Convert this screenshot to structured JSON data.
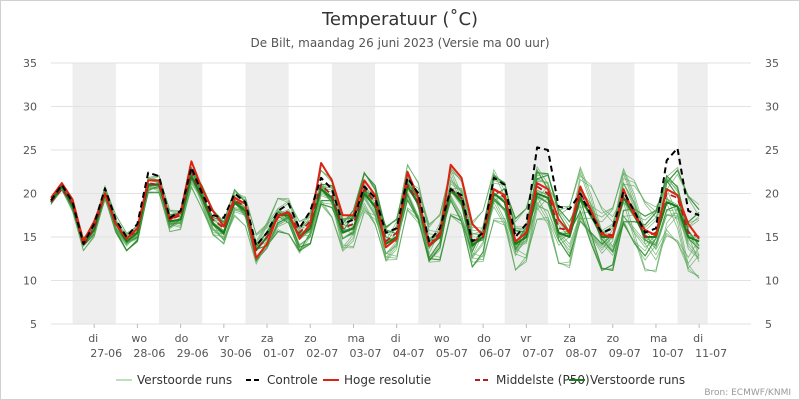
{
  "chart_data": {
    "type": "line",
    "title": "Temperatuur (˚C)",
    "subtitle": "De Bilt, maandag 26 juni 2023 (Versie ma 00 uur)",
    "source": "Bron: ECMWF/KNMI",
    "ylim": [
      5,
      35
    ],
    "yticks": [
      5,
      10,
      15,
      20,
      25,
      30,
      35
    ],
    "xlim": [
      0,
      16.2
    ],
    "x_ticks": [
      {
        "x": 1,
        "day": "di",
        "date": "27-06"
      },
      {
        "x": 2,
        "day": "wo",
        "date": "28-06"
      },
      {
        "x": 3,
        "day": "do",
        "date": "29-06"
      },
      {
        "x": 4,
        "day": "vr",
        "date": "30-06"
      },
      {
        "x": 5,
        "day": "za",
        "date": "01-07"
      },
      {
        "x": 6,
        "day": "zo",
        "date": "02-07"
      },
      {
        "x": 7,
        "day": "ma",
        "date": "03-07"
      },
      {
        "x": 8,
        "day": "di",
        "date": "04-07"
      },
      {
        "x": 9,
        "day": "wo",
        "date": "05-07"
      },
      {
        "x": 10,
        "day": "do",
        "date": "06-07"
      },
      {
        "x": 11,
        "day": "vr",
        "date": "07-07"
      },
      {
        "x": 12,
        "day": "za",
        "date": "08-07"
      },
      {
        "x": 13,
        "day": "zo",
        "date": "09-07"
      },
      {
        "x": 14,
        "day": "ma",
        "date": "10-07"
      },
      {
        "x": 15,
        "day": "di",
        "date": "11-07"
      }
    ],
    "shaded_bands": [
      [
        0.5,
        1.5
      ],
      [
        2.5,
        3.5
      ],
      [
        4.5,
        5.5
      ],
      [
        6.5,
        7.5
      ],
      [
        8.5,
        9.5
      ],
      [
        10.5,
        11.5
      ],
      [
        12.5,
        13.5
      ],
      [
        14.5,
        15.2
      ]
    ],
    "colors": {
      "ensemble": "#5aa85a",
      "control": "#000000",
      "high_res": "#e02010",
      "median": "#b02020",
      "shade": "#eeeeee"
    },
    "x": [
      0,
      0.25,
      0.5,
      0.75,
      1,
      1.25,
      1.5,
      1.75,
      2,
      2.25,
      2.5,
      2.75,
      3,
      3.25,
      3.5,
      3.75,
      4,
      4.25,
      4.5,
      4.75,
      5,
      5.25,
      5.5,
      5.75,
      6,
      6.25,
      6.5,
      6.75,
      7,
      7.25,
      7.5,
      7.75,
      8,
      8.25,
      8.5,
      8.75,
      9,
      9.25,
      9.5,
      9.75,
      10,
      10.25,
      10.5,
      10.75,
      11,
      11.25,
      11.5,
      11.75,
      12,
      12.25,
      12.5,
      12.75,
      13,
      13.25,
      13.5,
      13.75,
      14,
      14.25,
      14.5,
      14.75,
      15
    ],
    "series": [
      {
        "name": "Controle",
        "style": "control",
        "values": [
          19.2,
          21.0,
          19.0,
          14.2,
          16.5,
          20.6,
          17.0,
          15.0,
          16.5,
          22.4,
          22.0,
          17.2,
          18.0,
          23.0,
          20.0,
          17.5,
          17.2,
          20.0,
          19.0,
          14.0,
          15.5,
          18.0,
          18.8,
          16.0,
          18.0,
          21.8,
          20.5,
          16.5,
          17.0,
          20.8,
          19.5,
          15.5,
          16.0,
          21.8,
          20.0,
          14.5,
          16.0,
          20.5,
          19.8,
          14.5,
          15.5,
          21.8,
          21.0,
          15.0,
          16.5,
          25.3,
          25.0,
          18.5,
          18.2,
          20.0,
          17.5,
          15.5,
          16.0,
          20.2,
          18.0,
          15.5,
          16.0,
          23.8,
          25.2,
          18.0,
          17.5
        ]
      },
      {
        "name": "Hoge resolutie",
        "style": "high_res",
        "values": [
          19.5,
          21.2,
          19.3,
          14.5,
          16.8,
          20.0,
          16.5,
          14.8,
          16.0,
          21.5,
          21.5,
          17.0,
          17.8,
          23.7,
          20.5,
          18.0,
          16.2,
          19.5,
          18.8,
          12.6,
          14.2,
          17.5,
          17.8,
          14.8,
          16.5,
          23.5,
          21.5,
          17.5,
          17.5,
          21.5,
          19.8,
          13.8,
          14.8,
          22.5,
          19.5,
          14.0,
          15.2,
          23.3,
          21.8,
          16.5,
          15.2,
          20.5,
          19.8,
          14.5,
          15.5,
          21.2,
          20.5,
          17.0,
          15.5,
          20.8,
          18.0,
          15.3,
          15.0,
          20.5,
          17.5,
          15.8,
          15.2,
          20.5,
          19.8,
          16.5,
          14.8
        ]
      },
      {
        "name": "Middelste (P50)",
        "style": "median",
        "values": [
          19.0,
          20.5,
          18.8,
          14.0,
          16.0,
          20.0,
          16.5,
          14.8,
          15.8,
          21.2,
          21.0,
          17.0,
          17.5,
          22.5,
          19.8,
          17.0,
          16.0,
          19.2,
          18.5,
          13.5,
          15.0,
          17.2,
          18.0,
          15.5,
          16.8,
          21.0,
          19.8,
          16.0,
          16.5,
          20.5,
          19.0,
          14.5,
          15.5,
          21.0,
          19.0,
          14.0,
          15.5,
          20.5,
          19.5,
          14.5,
          15.0,
          20.5,
          19.5,
          14.5,
          15.5,
          20.8,
          20.0,
          16.0,
          15.8,
          20.0,
          18.0,
          15.5,
          15.2,
          19.8,
          18.0,
          15.0,
          15.5,
          20.0,
          19.5,
          15.5,
          15.0
        ]
      },
      {
        "name": "Verstoorde runs",
        "style": "ensemble_mean",
        "values": [
          19.0,
          20.8,
          18.5,
          14.2,
          15.8,
          20.0,
          16.5,
          14.5,
          15.5,
          21.0,
          21.0,
          16.8,
          17.0,
          22.0,
          19.5,
          16.5,
          15.5,
          19.0,
          18.0,
          13.5,
          15.0,
          17.5,
          17.5,
          15.0,
          16.0,
          20.5,
          19.5,
          15.5,
          16.0,
          20.0,
          18.5,
          14.2,
          15.0,
          20.8,
          18.8,
          14.0,
          15.0,
          20.5,
          19.0,
          14.0,
          15.0,
          20.0,
          19.0,
          14.2,
          15.0,
          20.0,
          19.5,
          15.5,
          15.0,
          19.5,
          17.5,
          15.0,
          15.0,
          19.5,
          17.5,
          15.0,
          15.0,
          19.0,
          18.5,
          15.0,
          14.5
        ]
      }
    ],
    "ensemble_spread": [
      0.3,
      0.5,
      0.6,
      0.7,
      0.8,
      0.9,
      1.0,
      1.0,
      1.0,
      1.0,
      1.0,
      1.2,
      1.2,
      1.3,
      1.3,
      1.5,
      1.5,
      1.6,
      1.6,
      1.8,
      1.8,
      1.9,
      2.0,
      2.0,
      2.0,
      2.0,
      2.2,
      2.2,
      2.2,
      2.2,
      2.3,
      2.3,
      2.4,
      2.5,
      2.5,
      2.5,
      2.6,
      2.8,
      2.8,
      2.8,
      2.8,
      3.0,
      3.0,
      3.0,
      3.0,
      3.2,
      3.2,
      3.3,
      3.4,
      3.5,
      3.5,
      3.5,
      3.6,
      3.7,
      3.8,
      3.8,
      3.9,
      4.0,
      4.2,
      4.3,
      4.5
    ],
    "ensemble_members": 24,
    "legend": [
      {
        "label": "Verstoorde runs",
        "style": "ensemble"
      },
      {
        "label": "Controle",
        "style": "control"
      },
      {
        "label": "Hoge resolutie",
        "style": "high_res"
      },
      {
        "label": "Middelste (P50)",
        "style": "median"
      },
      {
        "label": "Verstoorde runs",
        "style": "ensemble_mean"
      }
    ]
  }
}
